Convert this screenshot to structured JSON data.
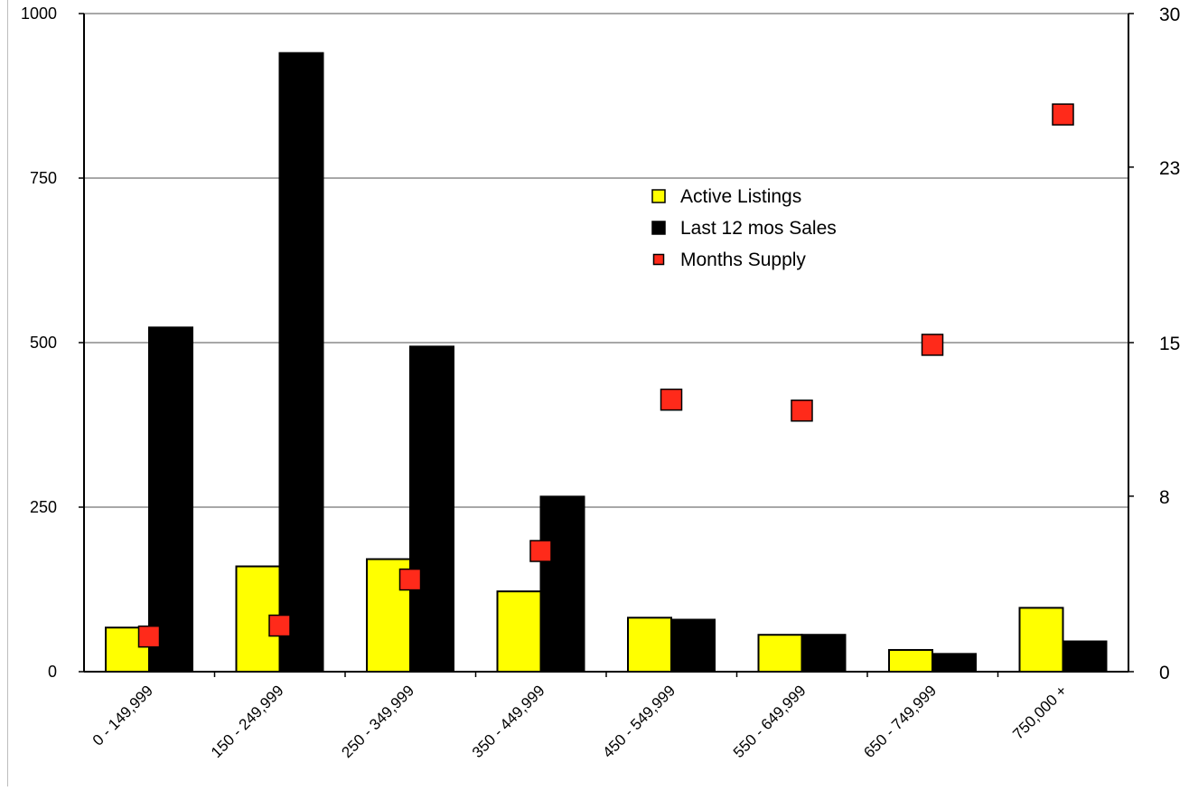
{
  "chart_data": {
    "type": "bar",
    "categories": [
      "0 - 149,999",
      "150 - 249,999",
      "250 - 349,999",
      "350 - 449,999",
      "450 - 549,999",
      "550 - 649,999",
      "650 - 749,999",
      "750,000 +"
    ],
    "series": [
      {
        "name": "Active Listings",
        "axis": "left",
        "kind": "bar",
        "color": "#ffff00",
        "values": [
          67,
          160,
          171,
          122,
          82,
          56,
          33,
          97
        ]
      },
      {
        "name": "Last 12 mos Sales",
        "axis": "left",
        "kind": "bar",
        "color": "#000000",
        "values": [
          523,
          940,
          494,
          266,
          79,
          56,
          27,
          46
        ]
      },
      {
        "name": "Months Supply",
        "axis": "right",
        "kind": "marker",
        "color": "#ff2a1a",
        "values": [
          1.6,
          2.1,
          4.2,
          5.5,
          12.4,
          11.9,
          14.9,
          25.4
        ]
      }
    ],
    "y_left": {
      "ylim": [
        0,
        1000
      ],
      "ticks": [
        "0",
        "250",
        "500",
        "750",
        "1000"
      ]
    },
    "y_right": {
      "ylim": [
        0,
        30
      ],
      "ticks": [
        "0",
        "8",
        "15",
        "23",
        "30"
      ]
    },
    "grid": true,
    "legend": "top-center",
    "title": "",
    "xlabel": "",
    "ylabel": ""
  }
}
